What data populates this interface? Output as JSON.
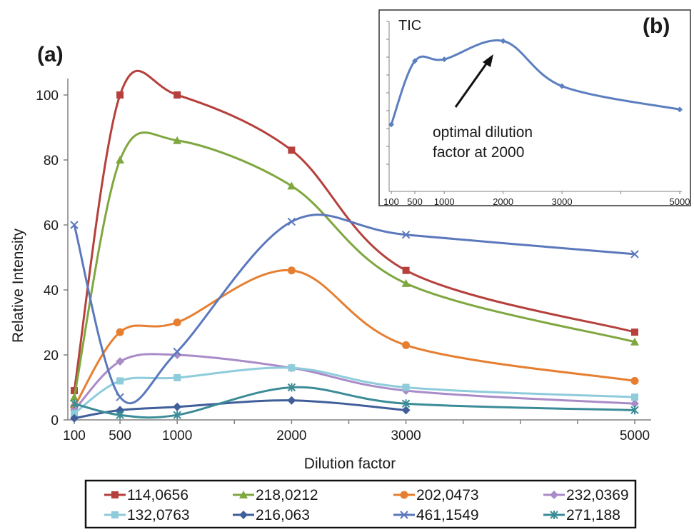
{
  "chart_data": [
    {
      "type": "line",
      "panel_label": "(a)",
      "xlabel": "Dilution factor",
      "ylabel": "Relative Intensity",
      "xlim": [
        100,
        5000
      ],
      "ylim": [
        0,
        100
      ],
      "x_ticks": [
        100,
        500,
        1000,
        2000,
        3000,
        5000
      ],
      "y_ticks": [
        0,
        20,
        40,
        60,
        80,
        100
      ],
      "legend_position": "bottom",
      "x": [
        100,
        500,
        1000,
        2000,
        3000,
        5000
      ],
      "series": [
        {
          "name": "114,0656",
          "color": "#b5403c",
          "marker": "square",
          "values": [
            9,
            100,
            100,
            83,
            46,
            27
          ]
        },
        {
          "name": "218,0212",
          "color": "#7fa73f",
          "marker": "triangle",
          "values": [
            7,
            80,
            86,
            72,
            42,
            24
          ]
        },
        {
          "name": "202,0473",
          "color": "#e67e30",
          "marker": "circle",
          "values": [
            4,
            27,
            30,
            46,
            23,
            12
          ]
        },
        {
          "name": "232,0369",
          "color": "#a98bc7",
          "marker": "diamond",
          "values": [
            3,
            18,
            20,
            16,
            9,
            5
          ]
        },
        {
          "name": "132,0763",
          "color": "#8ecbdb",
          "marker": "square",
          "values": [
            2,
            12,
            13,
            16,
            10,
            7
          ]
        },
        {
          "name": "216,063",
          "color": "#3f5e9a",
          "marker": "diamond",
          "values": [
            0.5,
            3,
            4,
            6,
            3,
            null
          ]
        },
        {
          "name": "461,1549",
          "color": "#5b78bd",
          "marker": "x",
          "values": [
            60,
            7,
            21,
            61,
            57,
            51
          ]
        },
        {
          "name": "271,188",
          "color": "#3b8c97",
          "marker": "star",
          "values": [
            5,
            1.5,
            1.5,
            10,
            5,
            3
          ]
        }
      ]
    },
    {
      "type": "line",
      "panel_label": "(b)",
      "title": "TIC",
      "annotation": [
        "optimal dilution",
        "factor at 2000"
      ],
      "xlim": [
        100,
        5000
      ],
      "x_ticks": [
        100,
        500,
        1000,
        2000,
        3000,
        5000
      ],
      "series": [
        {
          "name": "TIC",
          "color": "#5b7fc0",
          "marker": "diamond",
          "x": [
            100,
            500,
            1000,
            2000,
            3000,
            5000
          ],
          "values": [
            40,
            78,
            79,
            90,
            63,
            49
          ]
        }
      ]
    }
  ]
}
